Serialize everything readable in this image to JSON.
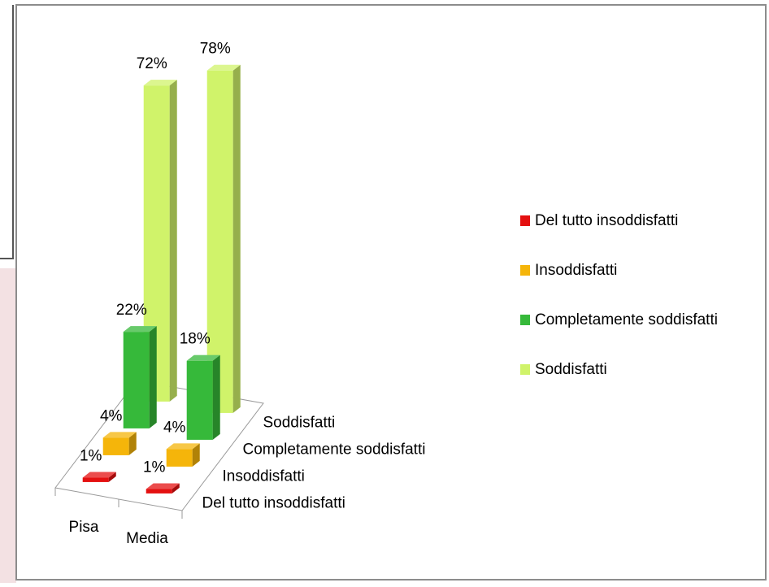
{
  "chart_data": {
    "type": "bar3d",
    "categories": [
      "Pisa",
      "Media"
    ],
    "series": [
      {
        "name": "Del tutto insoddisfatti",
        "color": "#e41010",
        "values": [
          1,
          1
        ],
        "value_labels": [
          "1%",
          "1%"
        ]
      },
      {
        "name": "Insoddisfatti",
        "color": "#f5b50a",
        "values": [
          4,
          4
        ],
        "value_labels": [
          "4%",
          "4%"
        ]
      },
      {
        "name": "Completamente soddisfatti",
        "color": "#36b93a",
        "values": [
          22,
          18
        ],
        "value_labels": [
          "22%",
          "18%"
        ]
      },
      {
        "name": "Soddisfatti",
        "color": "#d0f36a",
        "values": [
          72,
          78
        ],
        "value_labels": [
          "72%",
          "78%"
        ]
      }
    ],
    "legend": "right"
  }
}
